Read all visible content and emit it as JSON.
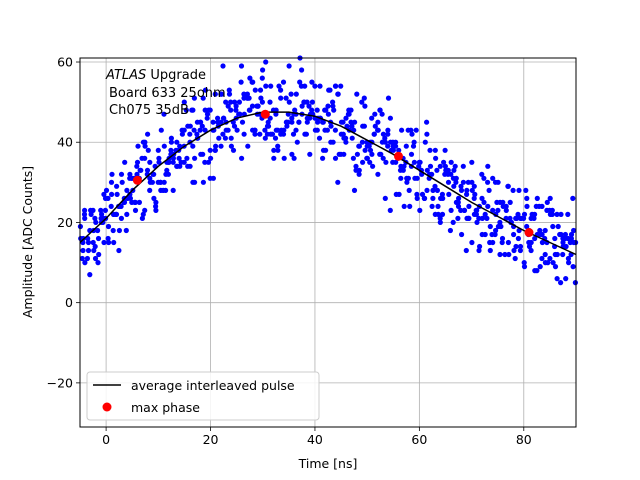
{
  "chart_data": {
    "type": "scatter",
    "xlabel": "Time [ns]",
    "ylabel": "Amplitude [ADC Counts]",
    "xlim": [
      -5,
      90
    ],
    "ylim": [
      -31,
      61
    ],
    "xticks": [
      0,
      20,
      40,
      60,
      80
    ],
    "yticks": [
      -20,
      0,
      20,
      40,
      60
    ],
    "grid": true,
    "legend_location": "lower-left",
    "annotation": {
      "line1_italic": "ATLAS",
      "line1_rest": " Upgrade",
      "line2": "Board 633 25ohm",
      "line3": "Ch075 35dB"
    },
    "series": [
      {
        "name": "average interleaved pulse",
        "kind": "line",
        "color": "#000000",
        "x": [
          -5,
          0,
          5,
          10,
          15,
          20,
          25,
          30,
          35,
          40,
          45,
          50,
          55,
          60,
          65,
          70,
          75,
          80,
          85,
          90
        ],
        "y": [
          15,
          21,
          28,
          34,
          39,
          43,
          46,
          47.5,
          47.5,
          46.5,
          44,
          40.5,
          37,
          33,
          29,
          25,
          21.5,
          18,
          15,
          12
        ]
      },
      {
        "name": "max phase",
        "kind": "marker",
        "color": "#ff0000",
        "x": [
          6,
          30.5,
          56,
          81
        ],
        "y": [
          30.5,
          47,
          36.5,
          17.5
        ]
      },
      {
        "name": "",
        "kind": "scatter-cloud",
        "color": "#0000ff",
        "x_range": [
          -5,
          90
        ],
        "x_step": 0.5,
        "points_per_x": 4,
        "spread": 6,
        "seed": 633
      }
    ]
  }
}
